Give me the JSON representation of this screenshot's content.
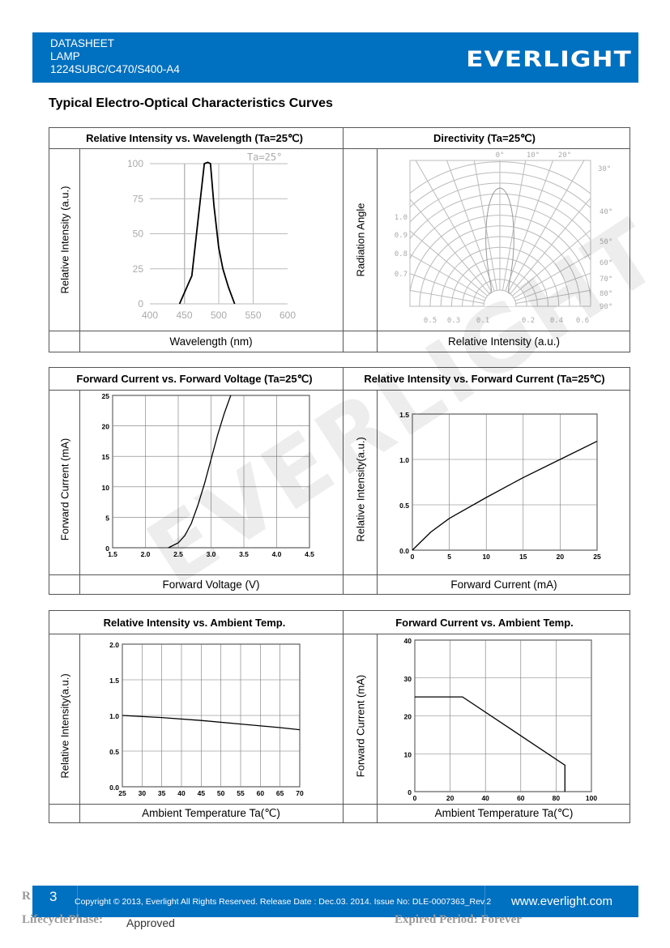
{
  "header": {
    "line1": "DATASHEET",
    "line2": "LAMP",
    "line3": "1224SUBC/C470/S400-A4",
    "logo": "EVERLIGHT",
    "color": "#0070c0"
  },
  "section_title": "Typical Electro-Optical Characteristics Curves",
  "watermark": "EVERLIGHT",
  "tables": [
    {
      "left_title": "Relative Intensity vs. Wavelength (Ta=25℃)",
      "right_title": "Directivity (Ta=25℃)",
      "left_ylabel": "Relative Intensity (a.u.)",
      "right_ylabel": "Radiation Angle",
      "left_xlabel": "Wavelength (nm)",
      "right_xlabel": "Relative Intensity (a.u.)"
    },
    {
      "left_title": "Forward Current vs. Forward Voltage (Ta=25℃)",
      "right_title": "Relative Intensity vs. Forward Current (Ta=25℃)",
      "left_ylabel": "Forward Current (mA)",
      "right_ylabel": "Relative Intensity(a.u.)",
      "left_xlabel": "Forward Voltage (V)",
      "right_xlabel": "Forward Current (mA)"
    },
    {
      "left_title": "Relative Intensity vs. Ambient Temp.",
      "right_title": "Forward Current vs. Ambient Temp.",
      "left_ylabel": "Relative Intensity(a.u.)",
      "right_ylabel": "Forward Current (mA)",
      "left_xlabel": "Ambient Temperature Ta(℃)",
      "right_xlabel": "Ambient Temperature Ta(℃)"
    }
  ],
  "chart_data": [
    {
      "type": "line",
      "annotation": "Ta=25°",
      "xlim": [
        400,
        600
      ],
      "ylim": [
        0,
        100
      ],
      "xticks": [
        "400",
        "450",
        "500",
        "550",
        "600"
      ],
      "yticks": [
        "0",
        "25",
        "50",
        "75",
        "100"
      ],
      "grid": true,
      "x": [
        443,
        452,
        461,
        470,
        479,
        484,
        488,
        493,
        500,
        506,
        514,
        523
      ],
      "y": [
        0,
        10,
        20,
        60,
        100,
        101,
        100,
        70,
        40,
        25,
        12,
        0
      ]
    },
    {
      "type": "polar",
      "angle_labels": [
        "0°",
        "10°",
        "20°",
        "30°",
        "40°",
        "50°",
        "60°",
        "70°",
        "80°",
        "90°"
      ],
      "left_labels": [
        "1.0",
        "0.9",
        "0.8",
        "0.7"
      ],
      "bottom_labels": [
        "0.5",
        "0.3",
        "0.1",
        "0.2",
        "0.4",
        "0.6"
      ],
      "half_angle_deg": 12
    },
    {
      "type": "line",
      "xlim": [
        1.5,
        4.5
      ],
      "ylim": [
        0,
        25
      ],
      "xticks": [
        "1.5",
        "2.0",
        "2.5",
        "3.0",
        "3.5",
        "4.0",
        "4.5"
      ],
      "yticks": [
        "0",
        "5",
        "10",
        "15",
        "20",
        "25"
      ],
      "grid": true,
      "x": [
        2.35,
        2.5,
        2.6,
        2.7,
        2.8,
        2.9,
        3.0,
        3.1,
        3.2,
        3.3
      ],
      "y": [
        0,
        0.8,
        2,
        4,
        7,
        10.5,
        14.5,
        18.5,
        22,
        25
      ]
    },
    {
      "type": "line",
      "xlim": [
        0,
        25
      ],
      "ylim": [
        0,
        1.5
      ],
      "xticks": [
        "0",
        "5",
        "10",
        "15",
        "20",
        "25"
      ],
      "yticks": [
        "0.0",
        "0.5",
        "1.0",
        "1.5"
      ],
      "grid": true,
      "x": [
        0,
        1,
        2.5,
        5,
        10,
        15,
        20,
        25
      ],
      "y": [
        0,
        0.08,
        0.2,
        0.35,
        0.58,
        0.8,
        1.0,
        1.2
      ]
    },
    {
      "type": "line",
      "xlim": [
        25,
        70
      ],
      "ylim": [
        0,
        2
      ],
      "xticks": [
        "25",
        "30",
        "35",
        "40",
        "45",
        "50",
        "55",
        "60",
        "65",
        "70"
      ],
      "yticks": [
        "0.0",
        "0.5",
        "1.0",
        "1.5",
        "2.0"
      ],
      "grid": true,
      "x": [
        25,
        35,
        45,
        55,
        65,
        70
      ],
      "y": [
        1.0,
        0.97,
        0.93,
        0.88,
        0.83,
        0.8
      ]
    },
    {
      "type": "line",
      "xlim": [
        0,
        100
      ],
      "ylim": [
        0,
        40
      ],
      "xticks": [
        "0",
        "20",
        "40",
        "60",
        "80",
        "100"
      ],
      "yticks": [
        "0",
        "10",
        "20",
        "30",
        "40"
      ],
      "grid": true,
      "x": [
        0,
        27,
        85,
        85
      ],
      "y": [
        25,
        25,
        7,
        0
      ]
    }
  ],
  "footer": {
    "page": "3",
    "copyright": "Copyright © 2013, Everlight All Rights Reserved. Release Date : Dec.03. 2014. Issue No: DLE-0007363_Rev.2",
    "url": "www.everlight.com",
    "r_text": "R",
    "lifecycle_label": "LifecyclePhase:",
    "lifecycle_value": "Approved",
    "expired": "Expired Period: Forever"
  }
}
